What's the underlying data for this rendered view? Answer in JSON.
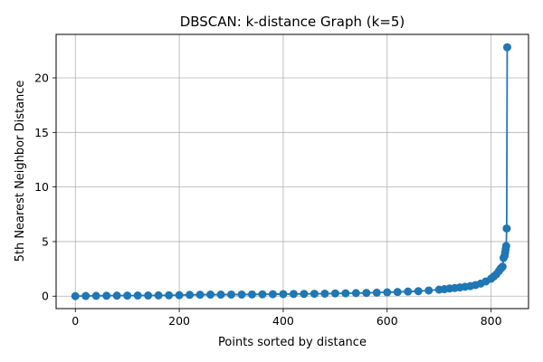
{
  "chart_data": {
    "type": "line",
    "title": "DBSCAN: k-distance Graph (k=5)",
    "xlabel": "Points sorted by distance",
    "ylabel": "5th Nearest Neighbor Distance",
    "xlim": [
      -37,
      872
    ],
    "ylim": [
      -1.14,
      23.98
    ],
    "xticks": [
      0,
      200,
      400,
      600,
      800
    ],
    "yticks": [
      0,
      5,
      10,
      15,
      20
    ],
    "grid": true,
    "marker": "circle",
    "color": "#1f77b4",
    "series": [
      {
        "x": [
          0,
          20,
          40,
          60,
          80,
          100,
          120,
          140,
          160,
          180,
          200,
          220,
          240,
          260,
          280,
          300,
          320,
          340,
          360,
          380,
          400,
          420,
          440,
          460,
          480,
          500,
          520,
          540,
          560,
          580,
          600,
          620,
          640,
          660,
          680,
          700,
          710,
          720,
          730,
          740,
          750,
          760,
          770,
          780,
          790,
          800,
          805,
          810,
          815,
          818,
          820,
          822,
          824,
          826,
          827,
          828,
          829,
          830,
          831
        ],
        "y": [
          0.0,
          0.02,
          0.03,
          0.04,
          0.05,
          0.05,
          0.06,
          0.06,
          0.07,
          0.08,
          0.09,
          0.12,
          0.13,
          0.14,
          0.14,
          0.15,
          0.15,
          0.16,
          0.17,
          0.18,
          0.19,
          0.2,
          0.21,
          0.22,
          0.23,
          0.25,
          0.26,
          0.28,
          0.3,
          0.32,
          0.35,
          0.38,
          0.42,
          0.46,
          0.52,
          0.6,
          0.64,
          0.7,
          0.75,
          0.8,
          0.86,
          0.92,
          1.02,
          1.15,
          1.35,
          1.6,
          1.8,
          2.0,
          2.3,
          2.5,
          2.6,
          2.7,
          3.5,
          3.7,
          4.0,
          4.3,
          4.6,
          6.2,
          22.8
        ]
      }
    ]
  }
}
